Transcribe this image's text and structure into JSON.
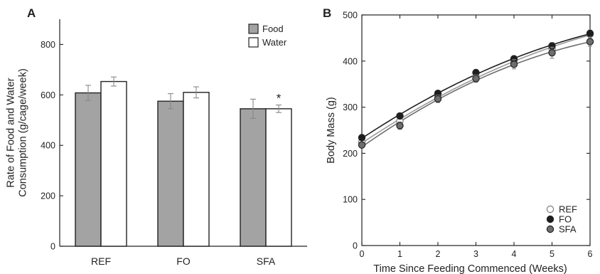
{
  "chart_data": [
    {
      "panel": "A",
      "type": "bar",
      "ylabel": "Rate of Food and Water\nConsumption (g/cage/week)",
      "ylim": [
        0,
        900
      ],
      "yticks": [
        0,
        200,
        400,
        600,
        800
      ],
      "categories": [
        "REF",
        "FO",
        "SFA"
      ],
      "series": [
        {
          "name": "Food",
          "color": "#a3a3a3",
          "values": [
            608,
            575,
            545
          ],
          "errors": [
            30,
            30,
            38
          ]
        },
        {
          "name": "Water",
          "color": "#ffffff",
          "values": [
            653,
            610,
            545
          ],
          "errors": [
            18,
            22,
            15
          ]
        }
      ],
      "annotations": [
        {
          "category": "SFA",
          "series": "Water",
          "text": "*"
        }
      ],
      "legend": "top-right"
    },
    {
      "panel": "B",
      "type": "scatter",
      "xlabel": "Time Since Feeding Commenced (Weeks)",
      "ylabel": "Body Mass (g)",
      "xlim": [
        0,
        6
      ],
      "ylim": [
        0,
        500
      ],
      "xticks": [
        0,
        1,
        2,
        3,
        4,
        5,
        6
      ],
      "yticks": [
        0,
        100,
        200,
        300,
        400,
        500
      ],
      "x": [
        0,
        1,
        2,
        3,
        4,
        5,
        6
      ],
      "series": [
        {
          "name": "REF",
          "marker": "open",
          "color": "#ffffff",
          "values": [
            224,
            270,
            322,
            366,
            400,
            427,
            458
          ],
          "errors": [
            6,
            7,
            7,
            7,
            8,
            9,
            9
          ]
        },
        {
          "name": "FO",
          "marker": "filled-dark",
          "color": "#1e1e1e",
          "values": [
            234,
            281,
            330,
            375,
            405,
            433,
            460
          ],
          "errors": [
            5,
            5,
            6,
            6,
            6,
            7,
            7
          ]
        },
        {
          "name": "SFA",
          "marker": "filled-gray",
          "color": "#6e6e6e",
          "values": [
            218,
            260,
            318,
            362,
            393,
            418,
            442
          ],
          "errors": [
            6,
            8,
            8,
            8,
            10,
            12,
            10
          ]
        }
      ],
      "legend": "bottom-right"
    }
  ]
}
